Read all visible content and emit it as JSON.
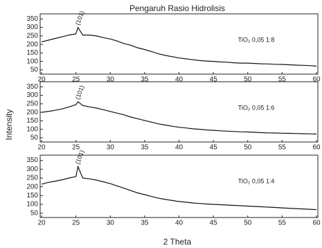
{
  "chart_data": [
    {
      "type": "line",
      "title": "Pengaruh Rasio Hidrolisis",
      "annotation": "(101)",
      "label": "TiO₂ 0,05 1:8",
      "x": [
        20,
        21,
        22,
        23,
        24,
        25,
        25.3,
        26,
        27,
        28,
        29,
        30,
        31,
        32,
        33,
        34,
        35,
        36,
        37,
        38,
        39,
        40,
        41,
        42,
        43,
        44,
        45,
        46,
        47,
        48,
        49,
        50,
        51,
        52,
        53,
        54,
        55,
        56,
        57,
        58,
        59,
        60
      ],
      "values": [
        215,
        225,
        235,
        245,
        255,
        262,
        300,
        255,
        255,
        250,
        240,
        232,
        220,
        205,
        195,
        180,
        170,
        158,
        145,
        135,
        128,
        120,
        115,
        110,
        105,
        102,
        100,
        97,
        95,
        92,
        90,
        90,
        88,
        86,
        85,
        83,
        82,
        80,
        78,
        77,
        75,
        72
      ],
      "color": "#111",
      "xlim": [
        20,
        60
      ],
      "ylim": [
        25,
        380
      ],
      "xticks": [
        20,
        25,
        30,
        35,
        40,
        45,
        50,
        55,
        60
      ],
      "yticks": [
        50,
        100,
        150,
        200,
        250,
        300,
        350
      ]
    },
    {
      "type": "line",
      "annotation": "(101)",
      "label": "TiO₂ 0,05 1:6",
      "ylabel": "Intensity",
      "x": [
        20,
        21,
        22,
        23,
        24,
        25,
        25.3,
        26,
        27,
        28,
        29,
        30,
        31,
        32,
        33,
        34,
        35,
        36,
        37,
        38,
        39,
        40,
        41,
        42,
        43,
        44,
        45,
        46,
        47,
        48,
        49,
        50,
        51,
        52,
        53,
        54,
        55,
        56,
        57,
        58,
        59,
        60
      ],
      "values": [
        200,
        205,
        212,
        220,
        232,
        245,
        262,
        240,
        232,
        225,
        215,
        205,
        195,
        185,
        172,
        162,
        152,
        142,
        132,
        125,
        118,
        112,
        108,
        103,
        100,
        96,
        94,
        91,
        89,
        87,
        85,
        84,
        82,
        80,
        79,
        78,
        77,
        76,
        75,
        74,
        73,
        72
      ],
      "color": "#111",
      "xlim": [
        20,
        60
      ],
      "ylim": [
        25,
        380
      ],
      "xticks": [
        20,
        25,
        30,
        35,
        40,
        45,
        50,
        55,
        60
      ],
      "yticks": [
        50,
        100,
        150,
        200,
        250,
        300,
        350
      ]
    },
    {
      "type": "line",
      "annotation": "(101)",
      "label": "TiO₂ 0,05 1:4",
      "xlabel": "2 Theta",
      "x": [
        20,
        21,
        22,
        23,
        24,
        25,
        25.3,
        26,
        27,
        28,
        29,
        30,
        31,
        32,
        33,
        34,
        35,
        36,
        37,
        38,
        39,
        40,
        41,
        42,
        43,
        44,
        45,
        46,
        47,
        48,
        49,
        50,
        51,
        52,
        53,
        54,
        55,
        56,
        57,
        58,
        59,
        60
      ],
      "values": [
        215,
        225,
        232,
        240,
        250,
        258,
        315,
        250,
        245,
        238,
        228,
        218,
        205,
        192,
        178,
        165,
        155,
        145,
        135,
        128,
        122,
        116,
        112,
        108,
        105,
        102,
        100,
        98,
        96,
        94,
        92,
        90,
        88,
        86,
        84,
        82,
        80,
        78,
        76,
        74,
        72,
        70
      ],
      "color": "#111",
      "xlim": [
        20,
        60
      ],
      "ylim": [
        25,
        380
      ],
      "xticks": [
        20,
        25,
        30,
        35,
        40,
        45,
        50,
        55,
        60
      ],
      "yticks": [
        50,
        100,
        150,
        200,
        250,
        300,
        350
      ]
    }
  ]
}
